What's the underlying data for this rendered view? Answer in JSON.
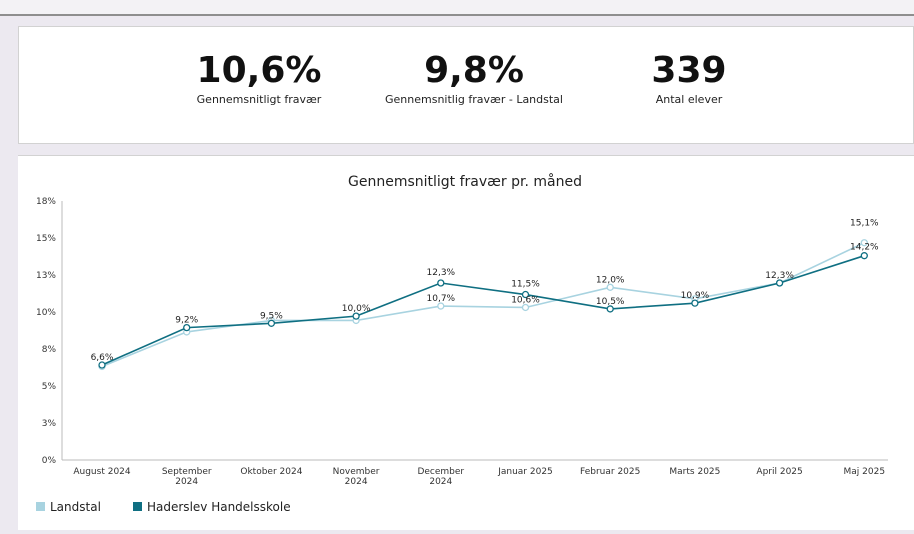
{
  "kpis": [
    {
      "value": "10,6%",
      "label": "Gennemsnitligt fravær"
    },
    {
      "value": "9,8%",
      "label": "Gennemsnitlig fravær - Landstal"
    },
    {
      "value": "339",
      "label": "Antal elever"
    }
  ],
  "chart_data": {
    "type": "line",
    "title": "Gennemsnitligt fravær pr. måned",
    "xlabel": "",
    "ylabel": "",
    "ylim": [
      0,
      18
    ],
    "yticks": [
      "0%",
      "3%",
      "5%",
      "8%",
      "10%",
      "13%",
      "15%",
      "18%"
    ],
    "categories": [
      "August 2024",
      "September 2024",
      "Oktober 2024",
      "November 2024",
      "December 2024",
      "Januar 2025",
      "Februar 2025",
      "Marts 2025",
      "April 2025",
      "Maj 2025"
    ],
    "series": [
      {
        "name": "Landstal",
        "color": "#a8d3e0",
        "values": [
          6.5,
          8.9,
          9.7,
          9.7,
          10.7,
          10.6,
          12.0,
          11.2,
          12.3,
          15.1
        ],
        "labels": [
          "",
          "",
          "",
          "",
          "10,7%",
          "10,6%",
          "12,0%",
          "",
          "",
          "15,1%"
        ]
      },
      {
        "name": "Haderslev Handelsskole",
        "color": "#0f6f82",
        "values": [
          6.6,
          9.2,
          9.5,
          10.0,
          12.3,
          11.5,
          10.5,
          10.9,
          12.3,
          14.2
        ],
        "labels": [
          "6,6%",
          "9,2%",
          "9,5%",
          "10,0%",
          "12,3%",
          "11,5%",
          "10,5%",
          "10,9%",
          "12,3%",
          "14,2%"
        ]
      }
    ],
    "legend": "bottom-left",
    "grid": false
  }
}
